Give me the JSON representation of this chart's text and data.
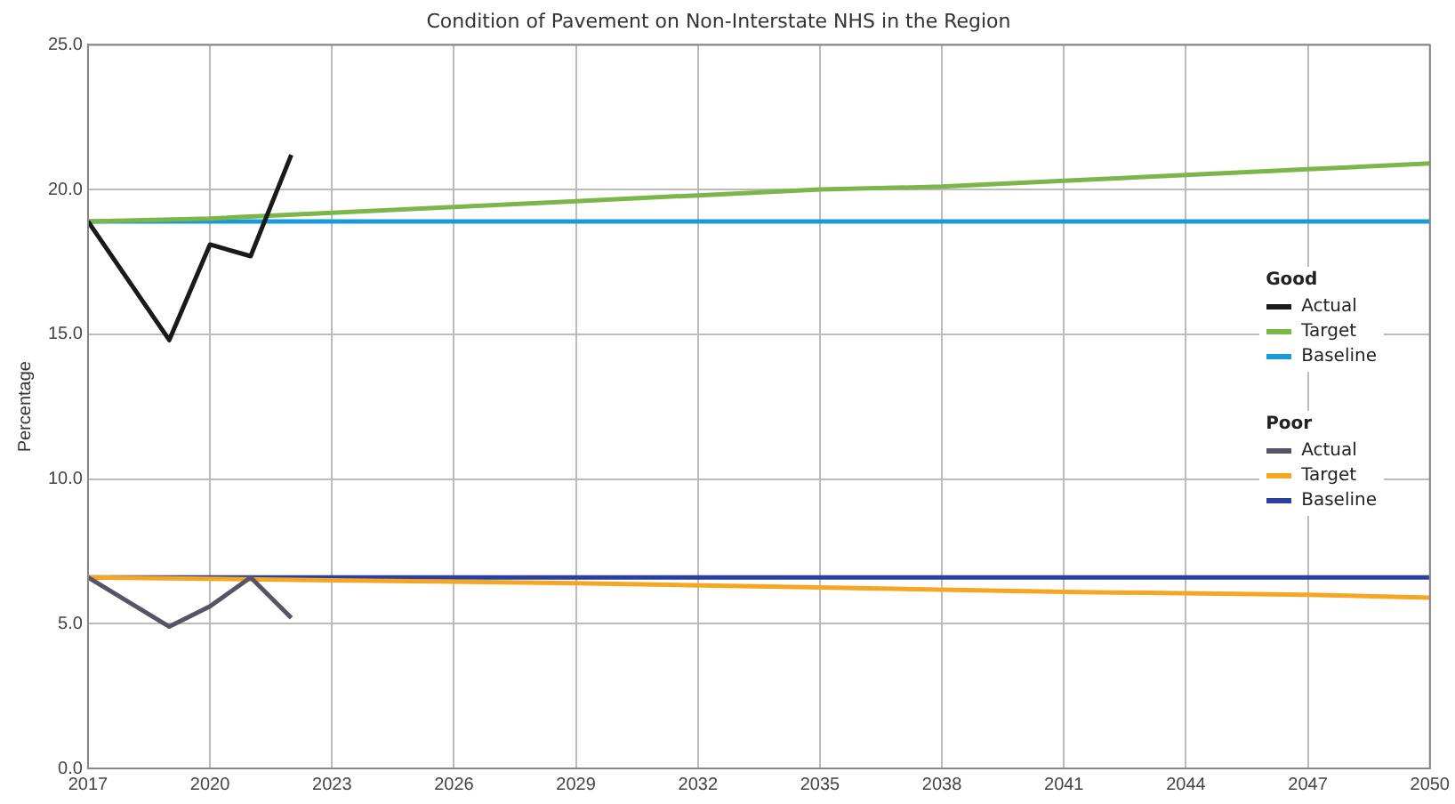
{
  "chart_data": {
    "type": "line",
    "title": "Condition of Pavement on Non-Interstate NHS in the Region",
    "ylabel": "Percentage",
    "xlim": [
      2017,
      2050
    ],
    "xticks": [
      2017,
      2020,
      2023,
      2026,
      2029,
      2032,
      2035,
      2038,
      2041,
      2044,
      2047,
      2050
    ],
    "ylim": [
      0,
      25
    ],
    "yticks": [
      {
        "value": 0,
        "label": "0.0"
      },
      {
        "value": 5,
        "label": "5.0"
      },
      {
        "value": 10,
        "label": "10.0"
      },
      {
        "value": 15,
        "label": "15.0"
      },
      {
        "value": 20,
        "label": "20.0"
      },
      {
        "value": 25,
        "label": "25.0"
      }
    ],
    "grid": true,
    "legend": "right",
    "legend_title": [
      "Good",
      "Poor"
    ],
    "marker": "none",
    "line_style": "solid",
    "series": [
      {
        "name": "Actual",
        "color": "#1a1a1a",
        "x": [
          2017,
          2019,
          2020,
          2021,
          2022
        ],
        "values": [
          18.9,
          14.8,
          18.1,
          17.7,
          21.2
        ]
      },
      {
        "name": "Target",
        "color": "#7ab648",
        "x": [
          2017,
          2020,
          2023,
          2026,
          2029,
          2032,
          2035,
          2038,
          2041,
          2044,
          2047,
          2050
        ],
        "values": [
          18.9,
          19.0,
          19.2,
          19.4,
          19.6,
          19.8,
          20.0,
          20.1,
          20.3,
          20.5,
          20.7,
          20.9
        ]
      },
      {
        "name": "Baseline",
        "color": "#1a9ad6",
        "x": [
          2017,
          2050
        ],
        "values": [
          18.9,
          18.9
        ]
      },
      {
        "name": "Actual",
        "color": "#555566",
        "x": [
          2017,
          2019,
          2020,
          2021,
          2022
        ],
        "values": [
          6.6,
          4.9,
          5.6,
          6.6,
          5.2
        ]
      },
      {
        "name": "Target",
        "color": "#f5a623",
        "x": [
          2017,
          2023,
          2029,
          2035,
          2041,
          2047,
          2050
        ],
        "values": [
          6.6,
          6.5,
          6.4,
          6.25,
          6.1,
          6.0,
          5.9
        ]
      },
      {
        "name": "Baseline",
        "color": "#2a3f9e",
        "x": [
          2017,
          2050
        ],
        "values": [
          6.6,
          6.6
        ]
      }
    ]
  }
}
